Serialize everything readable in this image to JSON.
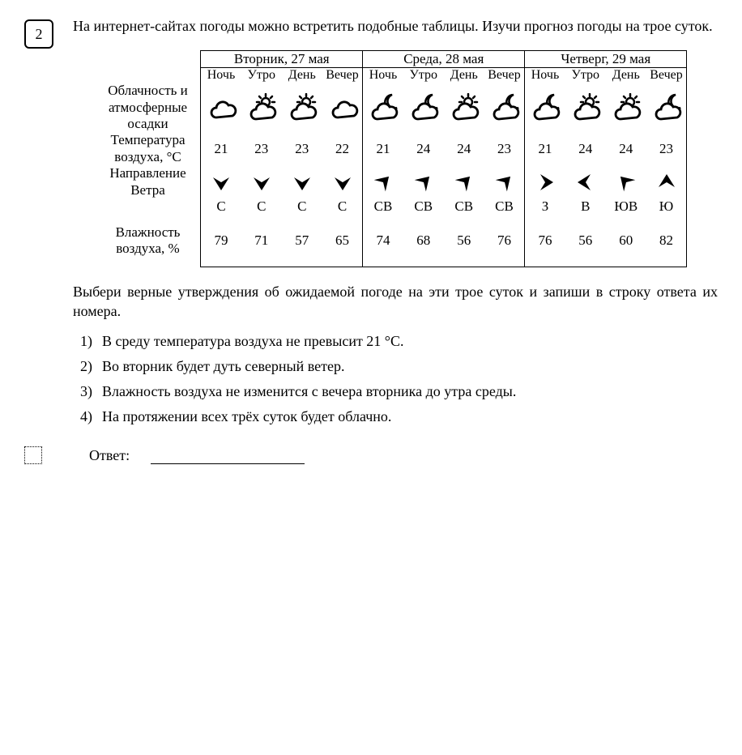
{
  "question_number": "2",
  "intro": "На интернет-сайтах погоды можно встретить подобные таблицы. Изучи прогноз погоды на трое суток.",
  "rowlabels": {
    "clouds": "Облачность и атмосферные осадки",
    "temp": "Температура воздуха, °C",
    "wind": "Направление Ветра",
    "humidity": "Влажность воздуха, %"
  },
  "timeofday": [
    "Ночь",
    "Утро",
    "День",
    "Вечер"
  ],
  "days": [
    {
      "header": "Вторник, 27 мая",
      "icons": [
        "cloud",
        "partly-sunny",
        "partly-sunny",
        "cloud"
      ],
      "temps": [
        21,
        23,
        23,
        22
      ],
      "wind_dirs": [
        "С",
        "С",
        "С",
        "С"
      ],
      "wind_arrow_angles": [
        180,
        180,
        180,
        180
      ],
      "humidity": [
        79,
        71,
        57,
        65
      ]
    },
    {
      "header": "Среда, 28 мая",
      "icons": [
        "cloud-moon",
        "cloud-moon",
        "partly-sunny",
        "cloud-moon"
      ],
      "temps": [
        21,
        24,
        24,
        23
      ],
      "wind_dirs": [
        "СВ",
        "СВ",
        "СВ",
        "СВ"
      ],
      "wind_arrow_angles": [
        45,
        45,
        45,
        45
      ],
      "humidity": [
        74,
        68,
        56,
        76
      ]
    },
    {
      "header": "Четверг, 29 мая",
      "icons": [
        "cloud-moon",
        "partly-sunny",
        "partly-sunny",
        "cloud-moon"
      ],
      "temps": [
        21,
        24,
        24,
        23
      ],
      "wind_dirs": [
        "З",
        "В",
        "ЮВ",
        "Ю"
      ],
      "wind_arrow_angles": [
        90,
        270,
        315,
        0
      ],
      "humidity": [
        76,
        56,
        60,
        82
      ]
    }
  ],
  "post": "Выбери верные утверждения об ожидаемой погоде на эти трое суток и запиши в строку ответа их номера.",
  "options": [
    "В среду температура воздуха не превысит 21 °C.",
    "Во вторник будет дуть северный ветер.",
    "Влажность воздуха не изменится с вечера вторника до утра среды.",
    "На протяжении всех трёх суток будет облачно."
  ],
  "answer_label": "Ответ:",
  "colors": {
    "text": "#000000",
    "bg": "#ffffff",
    "border": "#000000"
  }
}
